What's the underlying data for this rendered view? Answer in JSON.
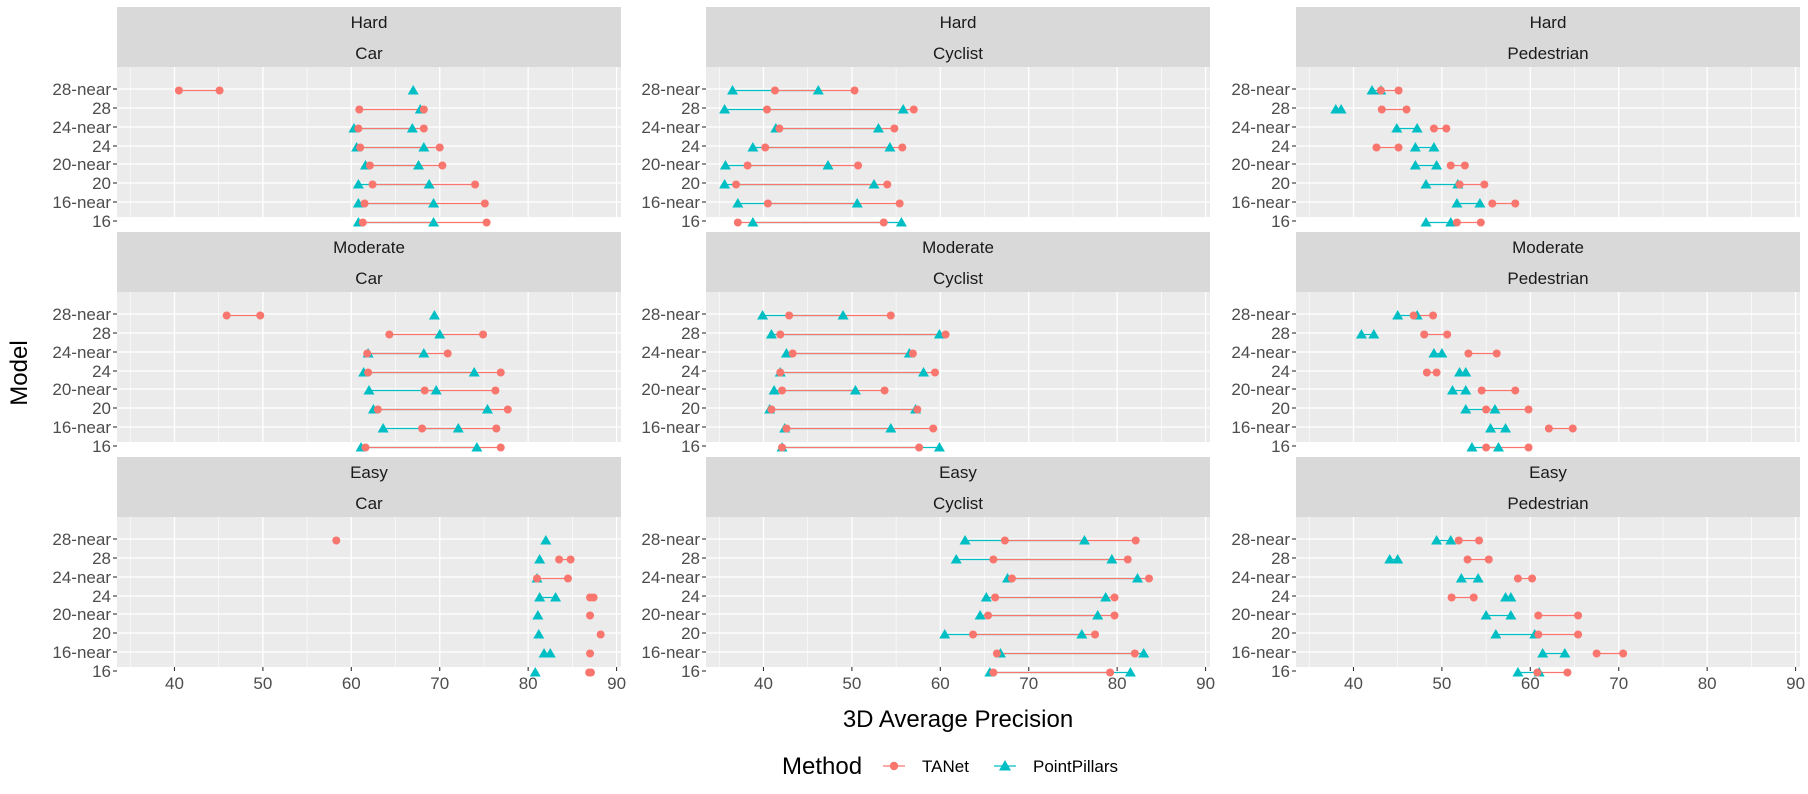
{
  "chart_data": {
    "type": "dumbbell",
    "xlabel": "3D Average Precision",
    "ylabel": "Model",
    "xlim": [
      33.5,
      90.5
    ],
    "xticks": [
      40,
      50,
      60,
      70,
      80,
      90
    ],
    "models": [
      "28-near",
      "28",
      "24-near",
      "24",
      "20-near",
      "20",
      "16-near",
      "16"
    ],
    "legend": {
      "title": "Method",
      "position": "bottom",
      "entries": [
        {
          "name": "TANet",
          "color": "#f8766d",
          "shape": "circle"
        },
        {
          "name": "PointPillars",
          "color": "#00bfc4",
          "shape": "triangle"
        }
      ]
    },
    "panels": [
      {
        "difficulty": "Hard",
        "class": "Car",
        "TANet": {
          "28-near": [
            40.5,
            45.1
          ],
          "28": [
            60.9,
            68.2
          ],
          "24-near": [
            60.8,
            68.2
          ],
          "24": [
            61.0,
            70.0
          ],
          "20-near": [
            62.1,
            70.3
          ],
          "20": [
            62.4,
            74.0
          ],
          "16-near": [
            61.5,
            75.1
          ],
          "16": [
            61.3,
            75.3
          ]
        },
        "PointPillars": {
          "28-near": [
            67.0
          ],
          "28": [
            67.8
          ],
          "24-near": [
            60.3,
            66.9
          ],
          "24": [
            60.6,
            68.2
          ],
          "20-near": [
            61.6,
            67.6
          ],
          "20": [
            60.8,
            68.8
          ],
          "16-near": [
            60.8,
            69.3
          ],
          "16": [
            60.8,
            69.3
          ]
        }
      },
      {
        "difficulty": "Hard",
        "class": "Cyclist",
        "TANet": {
          "28-near": [
            41.3,
            50.3
          ],
          "28": [
            40.4,
            57.0
          ],
          "24-near": [
            41.8,
            54.8
          ],
          "24": [
            40.2,
            55.7
          ],
          "20-near": [
            38.2,
            50.7
          ],
          "20": [
            36.9,
            54.0
          ],
          "16-near": [
            40.5,
            55.4
          ],
          "16": [
            37.1,
            53.6
          ]
        },
        "PointPillars": {
          "28-near": [
            36.5,
            46.2
          ],
          "28": [
            35.6,
            55.8
          ],
          "24-near": [
            41.4,
            53.0
          ],
          "24": [
            38.8,
            54.3
          ],
          "20-near": [
            35.7,
            47.3
          ],
          "20": [
            35.6,
            52.5
          ],
          "16-near": [
            37.1,
            50.6
          ],
          "16": [
            38.8,
            55.6
          ]
        }
      },
      {
        "difficulty": "Hard",
        "class": "Pedestrian",
        "TANet": {
          "28-near": [
            43.1,
            45.1
          ],
          "28": [
            43.2,
            46.0
          ],
          "24-near": [
            49.1,
            50.5
          ],
          "24": [
            42.6,
            45.1
          ],
          "20-near": [
            51.0,
            52.6
          ],
          "20": [
            52.0,
            54.8
          ],
          "16-near": [
            55.7,
            58.3
          ],
          "16": [
            51.7,
            54.4
          ]
        },
        "PointPillars": {
          "28-near": [
            42.1,
            43.1
          ],
          "28": [
            38.0,
            38.6
          ],
          "24-near": [
            44.9,
            47.2
          ],
          "24": [
            47.0,
            49.1
          ],
          "20-near": [
            47.0,
            49.4
          ],
          "20": [
            48.2,
            51.8
          ],
          "16-near": [
            51.7,
            54.3
          ],
          "16": [
            48.2,
            51.0
          ]
        }
      },
      {
        "difficulty": "Moderate",
        "class": "Car",
        "TANet": {
          "28-near": [
            45.9,
            49.7
          ],
          "28": [
            64.3,
            74.9
          ],
          "24-near": [
            61.8,
            70.9
          ],
          "24": [
            61.9,
            76.9
          ],
          "20-near": [
            68.3,
            76.3
          ],
          "20": [
            63.0,
            77.7
          ],
          "16-near": [
            68.0,
            76.4
          ],
          "16": [
            61.6,
            76.9
          ]
        },
        "PointPillars": {
          "28-near": [
            69.4
          ],
          "28": [
            70.0
          ],
          "24-near": [
            61.9,
            68.2
          ],
          "24": [
            61.4,
            73.9
          ],
          "20-near": [
            62.0,
            69.6
          ],
          "20": [
            62.5,
            75.4
          ],
          "16-near": [
            63.6,
            72.1
          ],
          "16": [
            61.1,
            74.2
          ]
        }
      },
      {
        "difficulty": "Moderate",
        "class": "Cyclist",
        "TANet": {
          "28-near": [
            42.9,
            54.4
          ],
          "28": [
            41.9,
            60.6
          ],
          "24-near": [
            43.3,
            56.9
          ],
          "24": [
            41.9,
            59.4
          ],
          "20-near": [
            42.1,
            53.7
          ],
          "20": [
            40.9,
            57.4
          ],
          "16-near": [
            42.6,
            59.2
          ],
          "16": [
            42.1,
            57.6
          ]
        },
        "PointPillars": {
          "28-near": [
            39.9,
            49.0
          ],
          "28": [
            40.9,
            59.9
          ],
          "24-near": [
            42.6,
            56.5
          ],
          "24": [
            41.9,
            58.1
          ],
          "20-near": [
            41.2,
            50.4
          ],
          "20": [
            40.7,
            57.2
          ],
          "16-near": [
            42.4,
            54.4
          ],
          "16": [
            42.1,
            59.9
          ]
        }
      },
      {
        "difficulty": "Moderate",
        "class": "Pedestrian",
        "TANet": {
          "28-near": [
            46.8,
            49.0
          ],
          "28": [
            48.0,
            50.6
          ],
          "24-near": [
            53.0,
            56.2
          ],
          "24": [
            48.3,
            49.4
          ],
          "20-near": [
            54.5,
            58.3
          ],
          "20": [
            55.0,
            59.8
          ],
          "16-near": [
            62.1,
            64.8
          ],
          "16": [
            55.0,
            59.8
          ]
        },
        "PointPillars": {
          "28-near": [
            45.0,
            47.2
          ],
          "28": [
            40.9,
            42.3
          ],
          "24-near": [
            49.1,
            50.0
          ],
          "24": [
            52.0,
            52.7
          ],
          "20-near": [
            51.2,
            52.7
          ],
          "20": [
            52.7,
            56.0
          ],
          "16-near": [
            55.5,
            57.2
          ],
          "16": [
            53.4,
            56.4
          ]
        }
      },
      {
        "difficulty": "Easy",
        "class": "Car",
        "TANet": {
          "28-near": [
            58.3
          ],
          "28": [
            83.5,
            84.8
          ],
          "24-near": [
            81.0,
            84.5
          ],
          "24": [
            87.0,
            87.4
          ],
          "20-near": [
            87.0
          ],
          "20": [
            88.2
          ],
          "16-near": [
            87.0
          ],
          "16": [
            86.9,
            87.1
          ]
        },
        "PointPillars": {
          "28-near": [
            82.0
          ],
          "28": [
            81.3
          ],
          "24-near": [
            81.0
          ],
          "24": [
            81.3,
            83.1
          ],
          "20-near": [
            81.1
          ],
          "20": [
            81.2
          ],
          "16-near": [
            81.8,
            82.5
          ],
          "16": [
            80.8
          ]
        }
      },
      {
        "difficulty": "Easy",
        "class": "Cyclist",
        "TANet": {
          "28-near": [
            67.3,
            82.1
          ],
          "28": [
            66.0,
            81.2
          ],
          "24-near": [
            68.1,
            83.6
          ],
          "24": [
            66.2,
            79.7
          ],
          "20-near": [
            65.4,
            79.7
          ],
          "20": [
            63.7,
            77.5
          ],
          "16-near": [
            66.4,
            82.0
          ],
          "16": [
            66.0,
            79.2
          ]
        },
        "PointPillars": {
          "28-near": [
            62.8,
            76.3
          ],
          "28": [
            61.8,
            79.4
          ],
          "24-near": [
            67.6,
            82.3
          ],
          "24": [
            65.2,
            78.7
          ],
          "20-near": [
            64.5,
            77.8
          ],
          "20": [
            60.5,
            76.0
          ],
          "16-near": [
            66.8,
            83.0
          ],
          "16": [
            65.6,
            81.5
          ]
        }
      },
      {
        "difficulty": "Easy",
        "class": "Pedestrian",
        "TANet": {
          "28-near": [
            51.9,
            54.2
          ],
          "28": [
            52.9,
            55.3
          ],
          "24-near": [
            58.6,
            60.2
          ],
          "24": [
            51.1,
            53.6
          ],
          "20-near": [
            60.9,
            65.4
          ],
          "20": [
            60.9,
            65.4
          ],
          "16-near": [
            67.5,
            70.5
          ],
          "16": [
            60.8,
            64.2
          ]
        },
        "PointPillars": {
          "28-near": [
            49.4,
            51.0
          ],
          "28": [
            44.1,
            45.0
          ],
          "24-near": [
            52.2,
            54.1
          ],
          "24": [
            57.2,
            57.8
          ],
          "20-near": [
            55.0,
            57.8
          ],
          "20": [
            56.1,
            60.5
          ],
          "16-near": [
            61.4,
            63.9
          ],
          "16": [
            58.6,
            61.0
          ]
        }
      }
    ]
  }
}
